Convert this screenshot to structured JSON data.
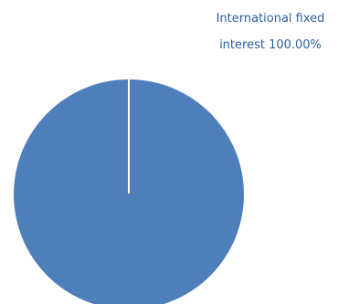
{
  "chart_data": {
    "type": "pie",
    "slices": [
      {
        "label": "International fixed interest",
        "value": 100.0,
        "display": "100.00%",
        "color": "#4e7fbb"
      }
    ]
  }
}
